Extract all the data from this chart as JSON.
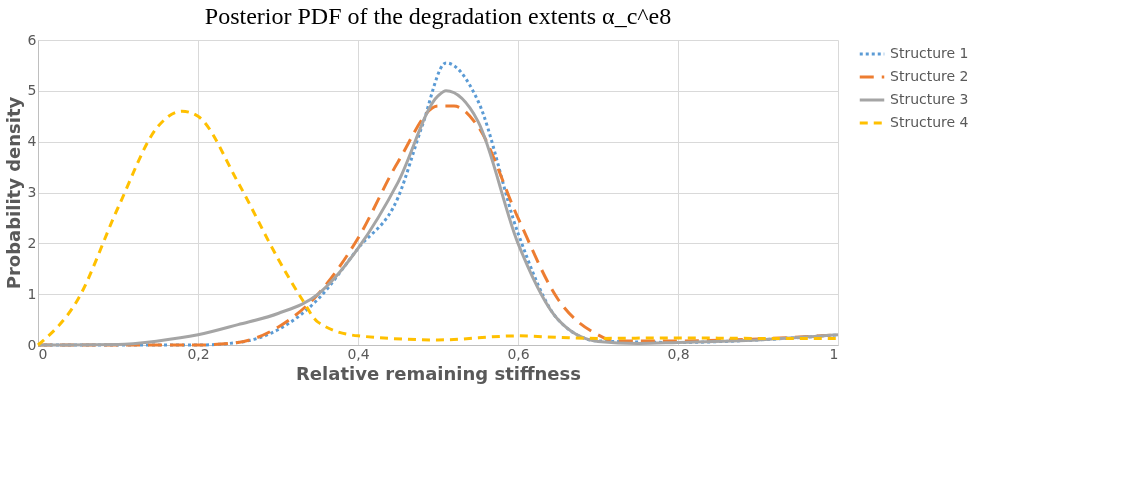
{
  "chart_data": {
    "type": "line",
    "title": "Posterior PDF of the degradation extents α_c^e8",
    "xlabel": "Relative remaining stiffness",
    "ylabel": "Probability density",
    "xlim": [
      0,
      1
    ],
    "xticks": [
      0,
      {
        "value": 0.2,
        "label": "0,2"
      },
      {
        "value": 0.4,
        "label": "0,4"
      },
      {
        "value": 0.6,
        "label": "0,6"
      },
      {
        "value": 0.8,
        "label": "0,8"
      },
      1
    ],
    "ylim": [
      0,
      6
    ],
    "yticks": [
      0,
      1,
      2,
      3,
      4,
      5,
      6
    ],
    "grid": true,
    "legend": "right",
    "marker": "none",
    "series": [
      {
        "name": "Structure 1",
        "color": "#5b9bd5",
        "line_style": "dotted",
        "x": [
          0,
          0.2,
          0.25,
          0.3,
          0.35,
          0.4,
          0.45,
          0.48,
          0.51,
          0.55,
          0.6,
          0.65,
          0.7,
          0.8,
          0.9,
          1
        ],
        "values": [
          0,
          0,
          0.05,
          0.3,
          0.9,
          1.9,
          2.9,
          4.3,
          5.55,
          4.8,
          2.2,
          0.5,
          0.08,
          0.05,
          0.1,
          0.2
        ]
      },
      {
        "name": "Structure 2",
        "color": "#ed7d31",
        "line_style": "dashed",
        "x": [
          0,
          0.2,
          0.25,
          0.3,
          0.35,
          0.4,
          0.45,
          0.5,
          0.52,
          0.55,
          0.6,
          0.65,
          0.7,
          0.72,
          0.8,
          0.9,
          1
        ],
        "values": [
          0,
          0,
          0.05,
          0.35,
          1.0,
          2.1,
          3.6,
          4.7,
          4.7,
          4.3,
          2.5,
          0.9,
          0.2,
          0.08,
          0.08,
          0.12,
          0.2
        ]
      },
      {
        "name": "Structure 3",
        "color": "#a5a5a5",
        "line_style": "solid",
        "x": [
          0,
          0.1,
          0.15,
          0.2,
          0.25,
          0.3,
          0.35,
          0.4,
          0.45,
          0.5,
          0.51,
          0.55,
          0.6,
          0.65,
          0.7,
          0.75,
          0.8,
          0.9,
          1
        ],
        "values": [
          0,
          0.01,
          0.08,
          0.2,
          0.4,
          0.62,
          1.0,
          1.9,
          3.2,
          4.9,
          5.0,
          4.4,
          2.0,
          0.5,
          0.07,
          0.03,
          0.05,
          0.1,
          0.2
        ]
      },
      {
        "name": "Structure 4",
        "color": "#ffc000",
        "line_style": "dashed",
        "x": [
          0,
          0.05,
          0.1,
          0.15,
          0.18,
          0.2,
          0.25,
          0.3,
          0.33,
          0.35,
          0.4,
          0.5,
          0.6,
          0.65,
          0.7,
          0.8,
          0.9,
          1
        ],
        "values": [
          0,
          0.9,
          2.7,
          4.3,
          4.6,
          4.5,
          3.2,
          1.7,
          0.9,
          0.45,
          0.18,
          0.1,
          0.18,
          0.15,
          0.13,
          0.14,
          0.13,
          0.13
        ]
      }
    ]
  }
}
